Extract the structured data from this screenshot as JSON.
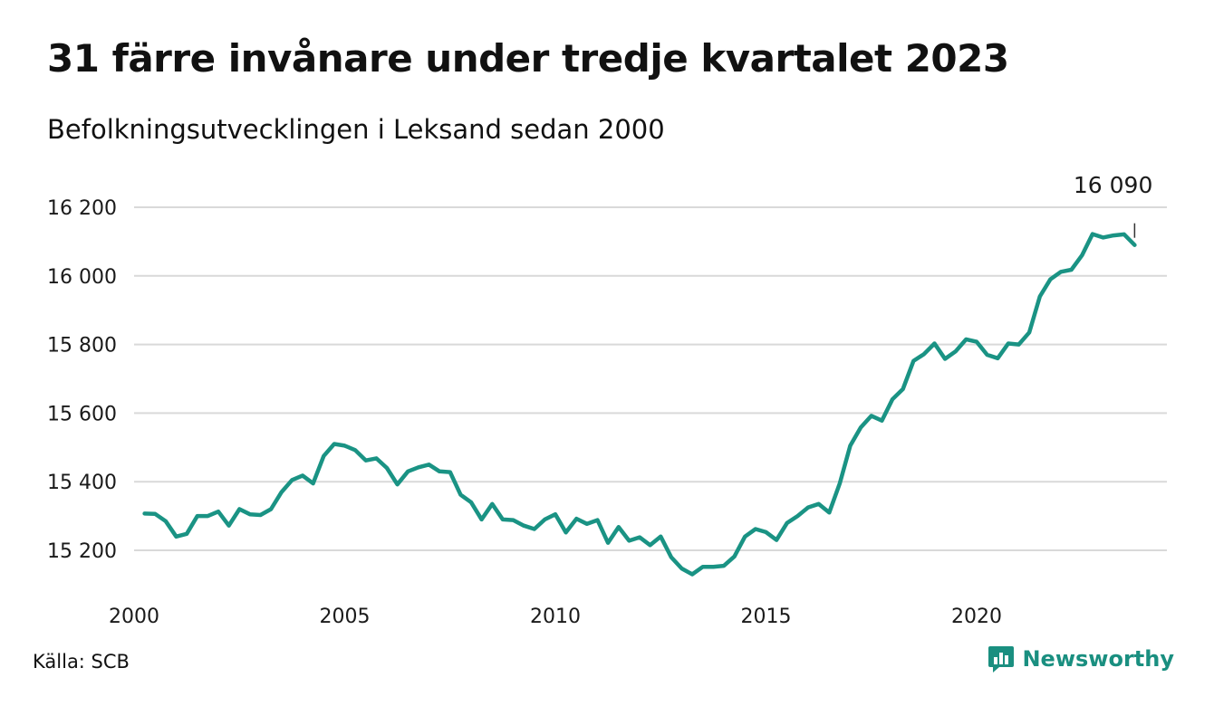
{
  "title": "31 färre invånare under tredje kvartalet 2023",
  "subtitle": "Befolkningsutvecklingen i Leksand sedan 2000",
  "source": "Källa: SCB",
  "brand": {
    "name": "Newsworthy",
    "color": "#1a8f80",
    "icon": "bar-chart-speech-bubble-icon"
  },
  "colors": {
    "line": "#1a9384",
    "grid": "#d9d9d9"
  },
  "chart_data": {
    "type": "line",
    "title": "31 färre invånare under tredje kvartalet 2023",
    "subtitle": "Befolkningsutvecklingen i Leksand sedan 2000",
    "xlabel": "",
    "ylabel": "",
    "xlim": [
      2000,
      2024.25
    ],
    "ylim": [
      15100,
      16250
    ],
    "y_ticks": [
      {
        "value": 15200,
        "label": "15 200"
      },
      {
        "value": 15400,
        "label": "15 400"
      },
      {
        "value": 15600,
        "label": "15 600"
      },
      {
        "value": 15800,
        "label": "15 800"
      },
      {
        "value": 16000,
        "label": "16 000"
      },
      {
        "value": 16200,
        "label": "16 200"
      }
    ],
    "x_ticks": [
      {
        "value": 2000,
        "label": "2000"
      },
      {
        "value": 2005,
        "label": "2005"
      },
      {
        "value": 2010,
        "label": "2010"
      },
      {
        "value": 2015,
        "label": "2015"
      },
      {
        "value": 2020,
        "label": "2020"
      }
    ],
    "grid": true,
    "legend": "none",
    "annotation": {
      "x": 2023.75,
      "y": 16090,
      "label": "16 090"
    },
    "series": [
      {
        "start_year": 2000.25,
        "step": 0.25,
        "values": [
          15307,
          15306,
          15285,
          15240,
          15248,
          15300,
          15300,
          15313,
          15272,
          15320,
          15305,
          15303,
          15320,
          15370,
          15405,
          15418,
          15395,
          15475,
          15510,
          15505,
          15492,
          15462,
          15468,
          15440,
          15392,
          15430,
          15442,
          15450,
          15430,
          15428,
          15362,
          15340,
          15290,
          15335,
          15290,
          15288,
          15272,
          15262,
          15290,
          15305,
          15252,
          15292,
          15277,
          15288,
          15222,
          15268,
          15228,
          15238,
          15215,
          15240,
          15180,
          15147,
          15130,
          15152,
          15152,
          15155,
          15182,
          15240,
          15262,
          15253,
          15230,
          15280,
          15300,
          15325,
          15335,
          15310,
          15395,
          15505,
          15558,
          15592,
          15578,
          15640,
          15670,
          15752,
          15772,
          15803,
          15758,
          15780,
          15815,
          15808,
          15770,
          15760,
          15803,
          15800,
          15835,
          15940,
          15990,
          16012,
          16018,
          16060,
          16122,
          16112,
          16118,
          16121,
          16090
        ]
      }
    ]
  }
}
